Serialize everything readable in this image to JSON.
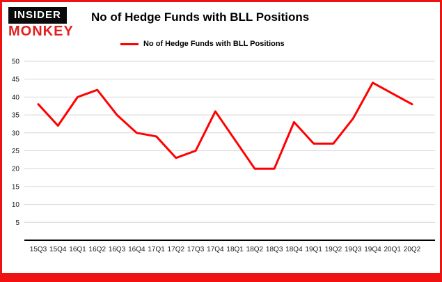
{
  "logo": {
    "line1": "INSIDER",
    "line2": "MONKEY"
  },
  "header": {
    "title": "No of Hedge Funds with BLL Positions"
  },
  "legend": {
    "label": "No of Hedge Funds with BLL Positions",
    "color": "#ff0000"
  },
  "colors": {
    "accent": "#ff0000",
    "grid": "#d6d6d6",
    "axis": "#000000",
    "frame": "#ee1212"
  },
  "chart_data": {
    "type": "line",
    "title": "No of Hedge Funds with BLL Positions",
    "categories": [
      "15Q3",
      "15Q4",
      "16Q1",
      "16Q2",
      "16Q3",
      "16Q4",
      "17Q1",
      "17Q2",
      "17Q3",
      "17Q4",
      "18Q1",
      "18Q2",
      "18Q3",
      "18Q4",
      "19Q1",
      "19Q2",
      "19Q3",
      "19Q4",
      "20Q1",
      "20Q2"
    ],
    "series": [
      {
        "name": "No of Hedge Funds with BLL Positions",
        "color": "#ff0000",
        "values": [
          38,
          32,
          40,
          42,
          35,
          30,
          29,
          23,
          25,
          36,
          28,
          20,
          20,
          33,
          27,
          27,
          34,
          44,
          41,
          38
        ]
      }
    ],
    "xlabel": "",
    "ylabel": "",
    "ylim": [
      0,
      50
    ],
    "ytick_step": 5,
    "grid": true,
    "legend_position": "top-left"
  }
}
